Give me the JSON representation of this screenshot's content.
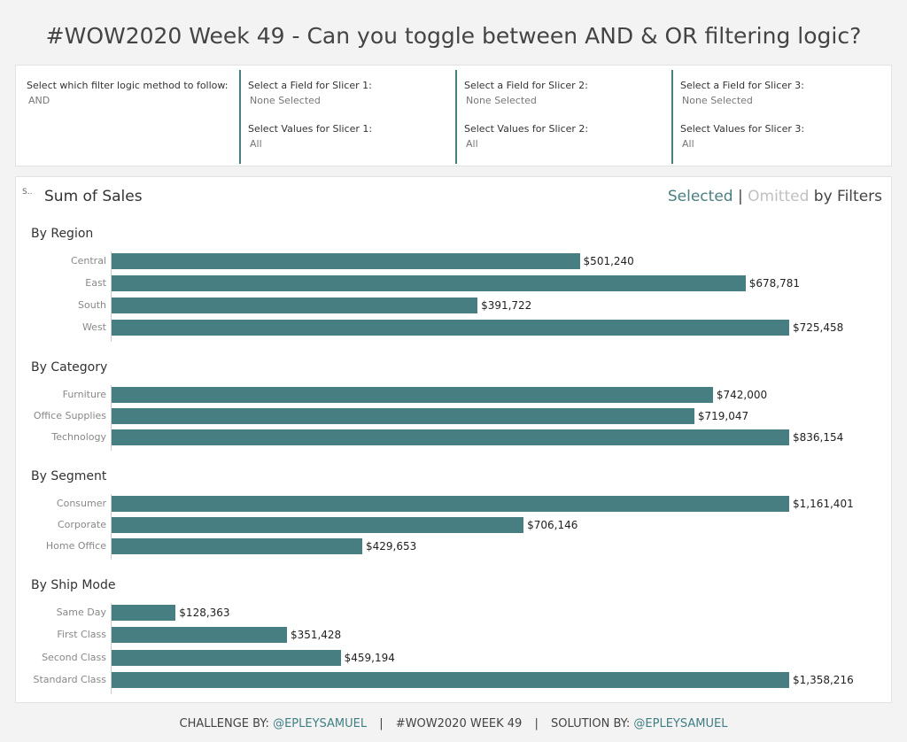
{
  "title": "#WOW2020 Week 49 - Can you toggle between AND & OR filtering logic?",
  "filters": {
    "logic": {
      "label": "Select which filter logic method to follow:",
      "value": "AND"
    },
    "slicers": [
      {
        "field_label": "Select a Field for Slicer 1:",
        "field_value": "None Selected",
        "values_label": "Select Values for Slicer 1:",
        "values_value": "All"
      },
      {
        "field_label": "Select a Field for Slicer 2:",
        "field_value": "None Selected",
        "values_label": "Select Values for Slicer 2:",
        "values_value": "All"
      },
      {
        "field_label": "Select a Field for Slicer 3:",
        "field_value": "None Selected",
        "values_label": "Select Values for Slicer 3:",
        "values_value": "All"
      }
    ]
  },
  "chart": {
    "small_label": "S..",
    "heading": "Sum of Sales",
    "legend": {
      "selected": "Selected",
      "sep": "|",
      "omitted": "Omitted",
      "suffix": "by Filters"
    },
    "bar_color": "#477e81"
  },
  "chart_data": {
    "type": "bar",
    "title": "Sum of Sales",
    "sections": [
      {
        "title": "By Region",
        "categories": [
          "Central",
          "East",
          "South",
          "West"
        ],
        "values": [
          501240,
          678781,
          391722,
          725458
        ],
        "labels": [
          "$501,240",
          "$678,781",
          "$391,722",
          "$725,458"
        ]
      },
      {
        "title": "By Category",
        "categories": [
          "Furniture",
          "Office Supplies",
          "Technology"
        ],
        "values": [
          742000,
          719047,
          836154
        ],
        "labels": [
          "$742,000",
          "$719,047",
          "$836,154"
        ]
      },
      {
        "title": "By Segment",
        "categories": [
          "Consumer",
          "Corporate",
          "Home Office"
        ],
        "values": [
          1161401,
          706146,
          429653
        ],
        "labels": [
          "$1,161,401",
          "$706,146",
          "$429,653"
        ]
      },
      {
        "title": "By Ship Mode",
        "categories": [
          "Same Day",
          "First Class",
          "Second Class",
          "Standard Class"
        ],
        "values": [
          128363,
          351428,
          459194,
          1358216
        ],
        "labels": [
          "$128,363",
          "$351,428",
          "$459,194",
          "$1,358,216"
        ]
      }
    ]
  },
  "footer": {
    "challenge": "CHALLENGE BY:",
    "challenge_handle": "@EPLEYSAMUEL",
    "week": "#WOW2020 WEEK 49",
    "solution": "SOLUTION BY:",
    "solution_handle": "@EPLEYSAMUEL",
    "pipe": "|"
  }
}
